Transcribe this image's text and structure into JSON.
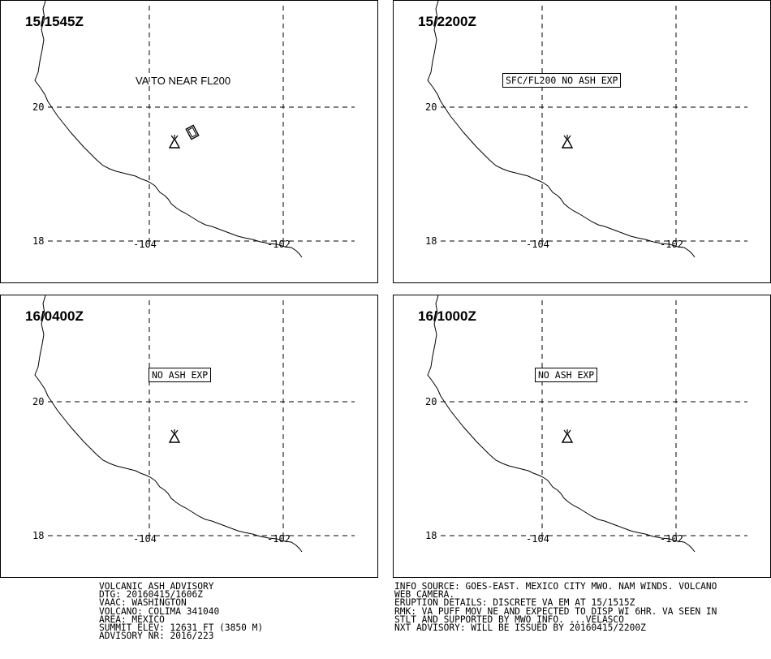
{
  "panels": [
    {
      "time": "15/1545Z",
      "annotation": "VA TO NEAR FL200",
      "annotation_boxed": false,
      "ash_polygon": true
    },
    {
      "time": "15/2200Z",
      "annotation": "SFC/FL200 NO ASH EXP",
      "annotation_boxed": true,
      "ash_polygon": false
    },
    {
      "time": "16/0400Z",
      "annotation": "NO ASH EXP",
      "annotation_boxed": true,
      "ash_polygon": false
    },
    {
      "time": "16/1000Z",
      "annotation": "NO ASH EXP",
      "annotation_boxed": true,
      "ash_polygon": false
    }
  ],
  "grid_labels": {
    "lat_20": "20",
    "lat_18": "18",
    "lon_104": "-104",
    "lon_102": "-102"
  },
  "advisory_left": [
    "VOLCANIC ASH ADVISORY",
    "DTG: 20160415/1606Z",
    "VAAC: WASHINGTON",
    "VOLCANO: COLIMA 341040",
    "AREA: MEXICO",
    "SUMMIT ELEV: 12631 FT (3850 M)",
    "ADVISORY NR: 2016/223"
  ],
  "advisory_right": [
    "INFO SOURCE: GOES-EAST. MEXICO CITY MWO. NAM WINDS. VOLCANO",
    "WEB CAMERA.",
    "ERUPTION DETAILS: DISCRETE VA EM AT 15/1515Z",
    "RMK: VA PUFF MOV NE AND EXPECTED TO DISP WI 6HR. VA SEEN IN",
    "STLT AND SUPPORTED BY MWO INFO. ...VELASCO",
    "NXT ADVISORY: WILL BE ISSUED BY 20160415/2200Z"
  ],
  "colors": {
    "lines": "#000000",
    "background": "#ffffff"
  },
  "icons": {
    "volcano": "volcano-icon"
  }
}
